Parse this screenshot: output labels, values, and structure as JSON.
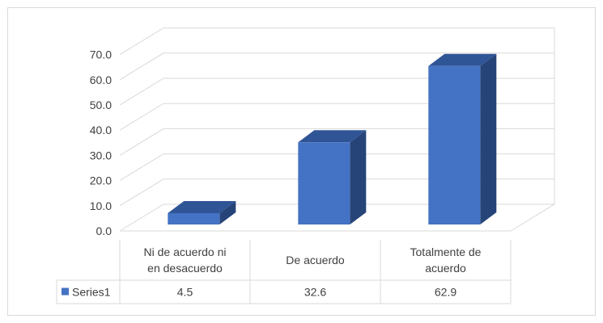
{
  "chart_data": {
    "type": "bar",
    "style": "3d-column-with-data-table",
    "categories": [
      [
        "Ni de acuerdo ni",
        "en desacuerdo"
      ],
      [
        "De acuerdo"
      ],
      [
        "Totalmente de",
        "acuerdo"
      ]
    ],
    "series": [
      {
        "name": "Series1",
        "values": [
          4.5,
          32.6,
          62.9
        ],
        "value_labels": [
          "4.5",
          "32.6",
          "62.9"
        ]
      }
    ],
    "ylim": [
      0,
      70
    ],
    "yticks": [
      "0.0",
      "10.0",
      "20.0",
      "30.0",
      "40.0",
      "50.0",
      "60.0",
      "70.0"
    ],
    "grid": true,
    "legend": "data-table",
    "colors": {
      "bar_front": "#4472c4",
      "bar_top": "#2f5597",
      "bar_side": "#264478",
      "grid": "#d9d9d9",
      "text": "#404040"
    }
  }
}
